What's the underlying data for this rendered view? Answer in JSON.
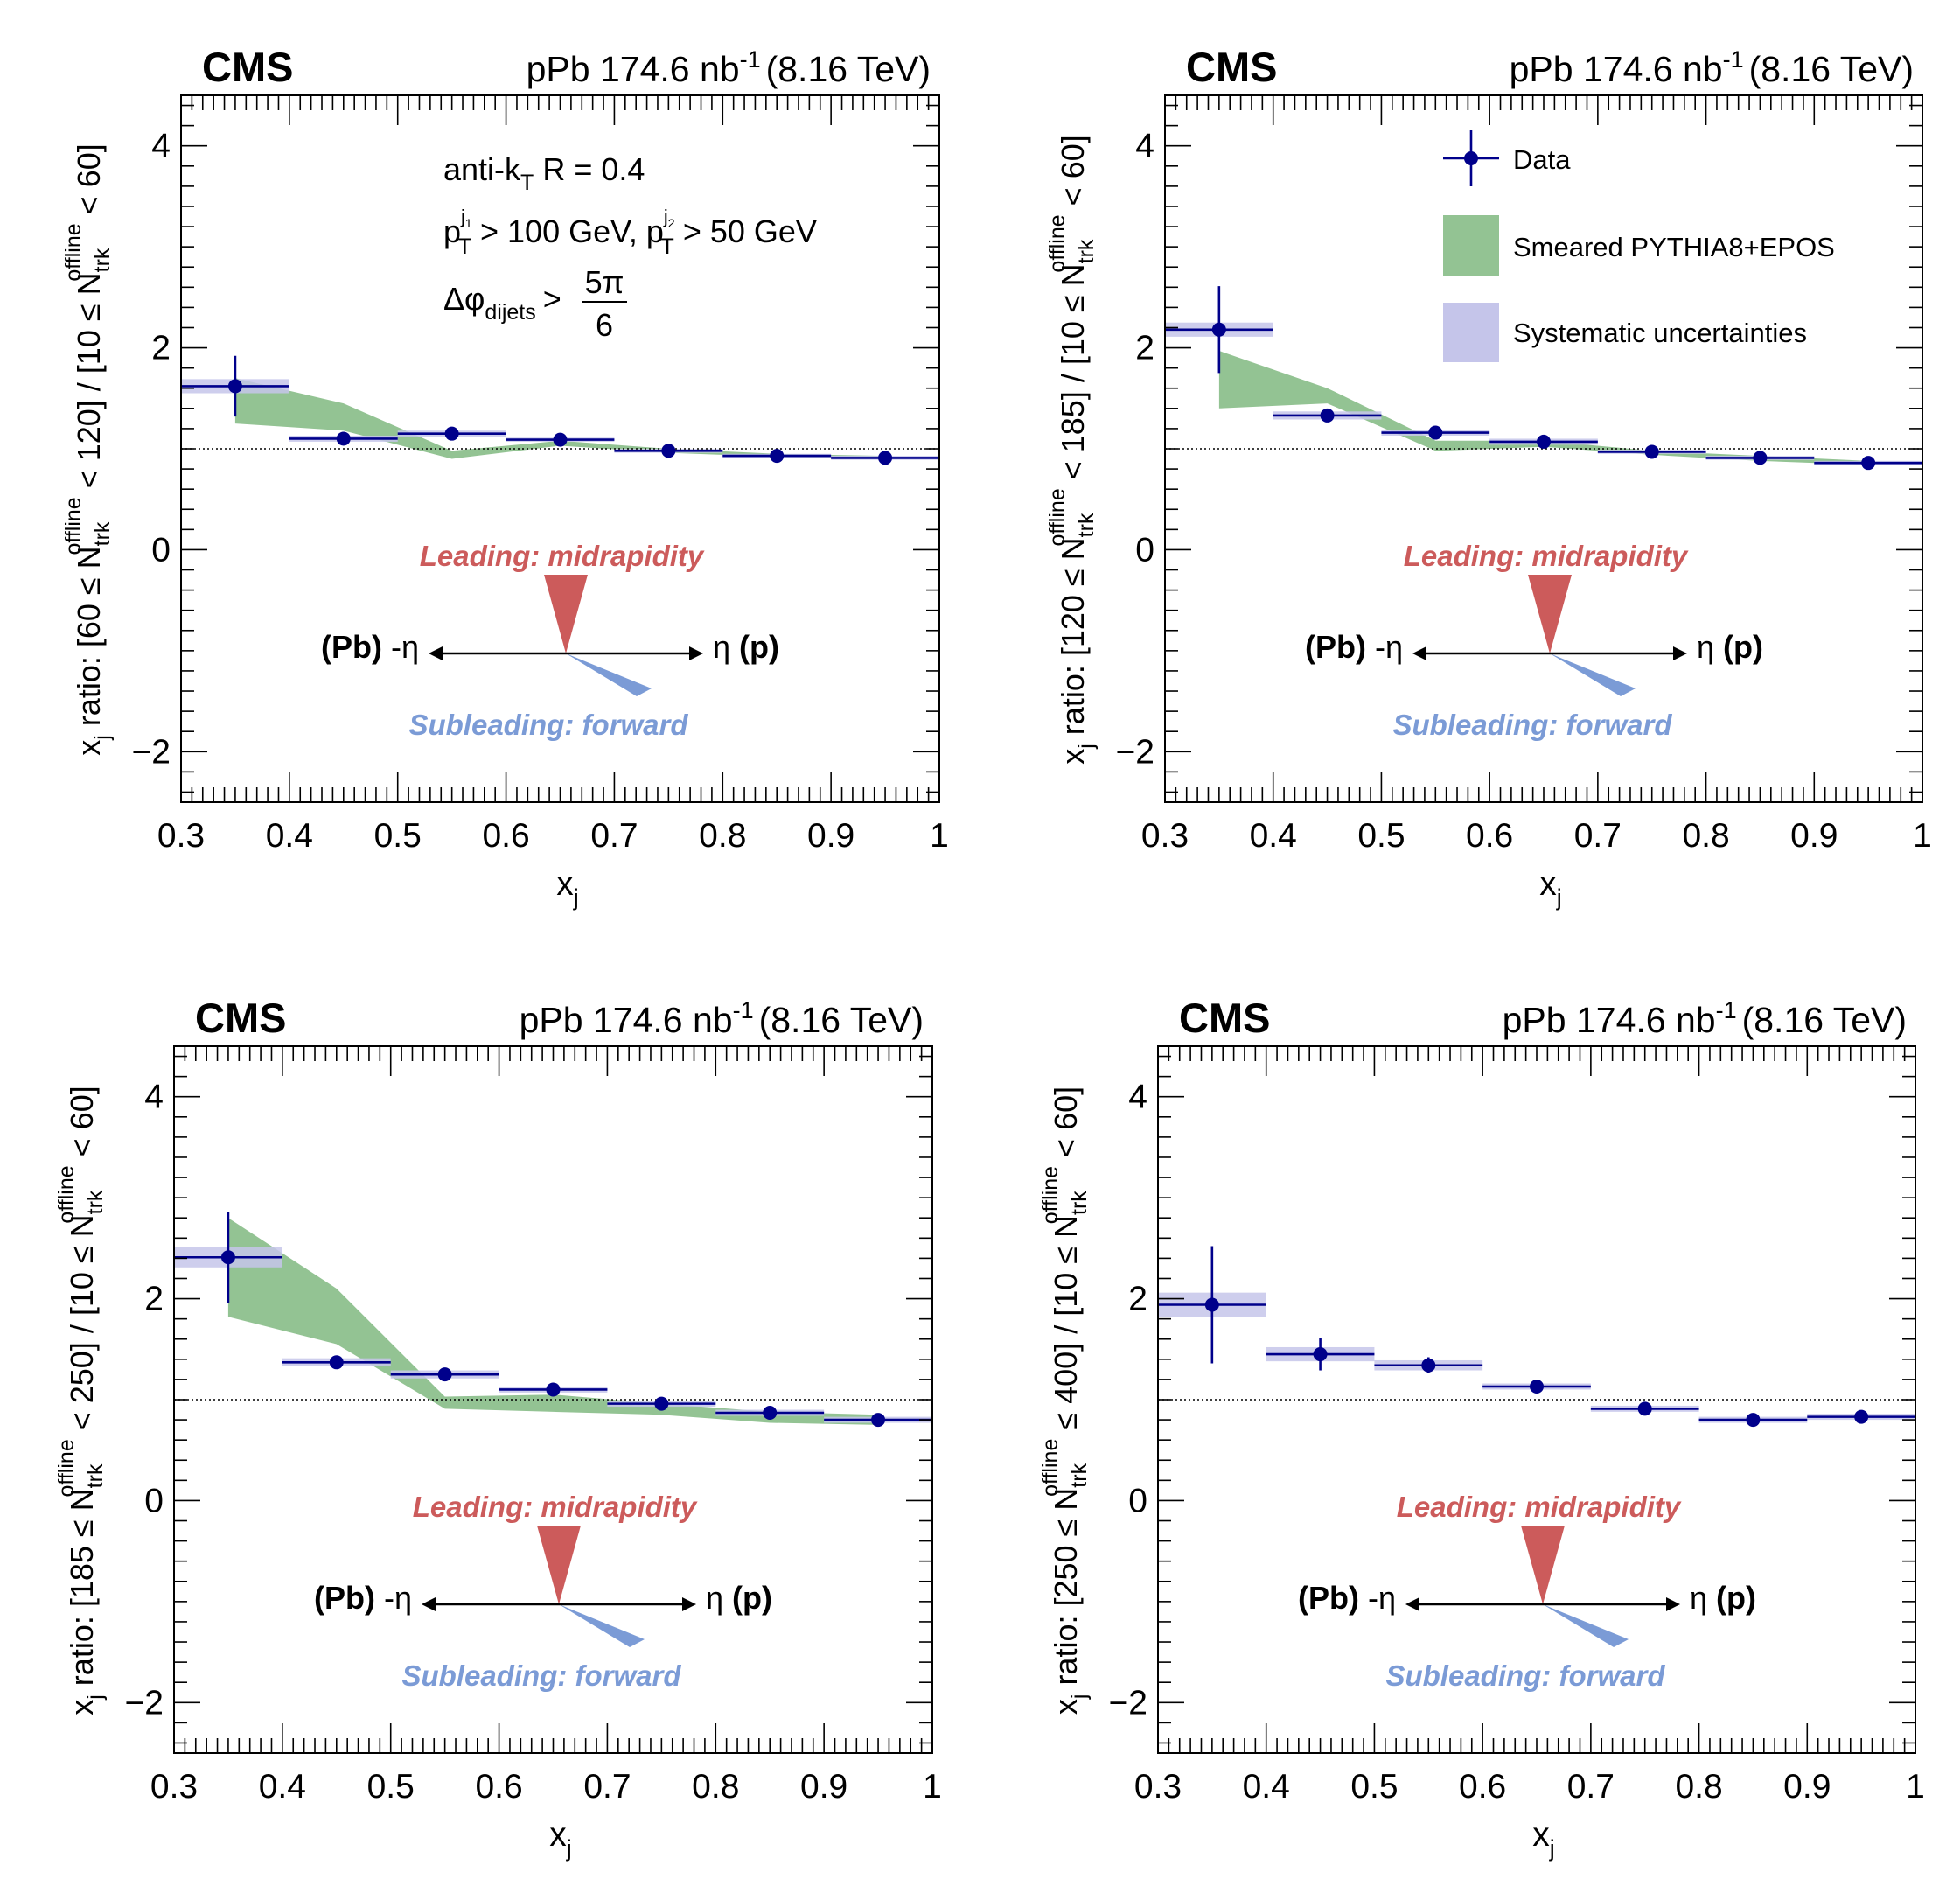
{
  "colors": {
    "data": "#00008b",
    "model_band": "#93c393",
    "syst_band": "#c5c5ea",
    "leading": "#cc5b5b",
    "subleading": "#7b9bd6",
    "axis": "#000000"
  },
  "common": {
    "experiment": "CMS",
    "lumi_text": "pPb 174.6 nb",
    "lumi_sup": "-1",
    "energy_text": "(8.16 TeV)",
    "xlabel_main": "x",
    "xlabel_sub": "j",
    "x_ticks": [
      "0.3",
      "0.4",
      "0.5",
      "0.6",
      "0.7",
      "0.8",
      "0.9",
      "1"
    ],
    "y_ticks": [
      "−2",
      "0",
      "2",
      "4"
    ],
    "cuts": {
      "algo_main": "anti-k",
      "algo_sub": "T",
      "algo_rest": " R = 0.4",
      "pt_p": "p",
      "pt_T": "T",
      "pt_j1": "j",
      "pt_j1_sub": "1",
      "pt_mid": " > 100 GeV,  p",
      "pt_j2": "j",
      "pt_j2_sub": "2",
      "pt_end": " > 50 GeV",
      "dphi_main": "Δφ",
      "dphi_sub": "dijets",
      "dphi_gt": ">",
      "dphi_num": "5π",
      "dphi_den": "6"
    },
    "legend": {
      "data": "Data",
      "model": "Smeared PYTHIA8+EPOS",
      "syst": "Systematic uncertainties"
    },
    "diagram": {
      "leading": "Leading: midrapidity",
      "subleading": "Subleading: forward",
      "left_bold": "(Pb)",
      "left_eta": " -η",
      "right_eta": "η ",
      "right_bold": "(p)"
    }
  },
  "chart_data": [
    {
      "type": "scatter",
      "xlabel": "x_j",
      "ylabel": "x_j ratio: [60 ≤ N_trk^offline < 120] / [10 ≤ N_trk^offline < 60]",
      "ylabel_parts": {
        "prefix": "x",
        "prefix_sub": "j",
        "mid": " ratio: [60 ≤ N",
        "N_sub": "trk",
        "N_sup": "offline",
        "end": " < 120] / [10 ≤ N",
        "N2_sub": "trk",
        "N2_sup": "offline",
        "end2": " < 60]"
      },
      "xlim": [
        0.3,
        1.0
      ],
      "ylim": [
        -2.5,
        4.5
      ],
      "reference_line": 1,
      "show_cuts": true,
      "show_legend": false,
      "data": {
        "x": [
          0.35,
          0.45,
          0.55,
          0.65,
          0.75,
          0.85,
          0.95
        ],
        "y": [
          1.62,
          1.1,
          1.15,
          1.09,
          0.98,
          0.93,
          0.91
        ],
        "xerr": [
          0.05,
          0.05,
          0.05,
          0.05,
          0.05,
          0.05,
          0.05
        ],
        "stat_err": [
          0.3,
          0.04,
          0.03,
          0.03,
          0.02,
          0.02,
          0.02
        ],
        "syst_err": [
          0.07,
          0.03,
          0.03,
          0.02,
          0.02,
          0.02,
          0.02
        ]
      },
      "model": {
        "x": [
          0.35,
          0.45,
          0.55,
          0.65,
          0.75,
          0.85,
          0.95
        ],
        "low": [
          1.25,
          1.18,
          0.9,
          1.03,
          0.96,
          0.92,
          0.9
        ],
        "high": [
          1.7,
          1.45,
          0.98,
          1.08,
          1.0,
          0.95,
          0.93
        ]
      }
    },
    {
      "type": "scatter",
      "xlabel": "x_j",
      "ylabel": "x_j ratio: [120 ≤ N_trk^offline < 185] / [10 ≤ N_trk^offline < 60]",
      "ylabel_parts": {
        "prefix": "x",
        "prefix_sub": "j",
        "mid": " ratio: [120 ≤ N",
        "N_sub": "trk",
        "N_sup": "offline",
        "end": " < 185] / [10 ≤ N",
        "N2_sub": "trk",
        "N2_sup": "offline",
        "end2": " < 60]"
      },
      "xlim": [
        0.3,
        1.0
      ],
      "ylim": [
        -2.5,
        4.5
      ],
      "reference_line": 1,
      "show_cuts": false,
      "show_legend": true,
      "data": {
        "x": [
          0.35,
          0.45,
          0.55,
          0.65,
          0.75,
          0.85,
          0.95
        ],
        "y": [
          2.18,
          1.33,
          1.16,
          1.07,
          0.97,
          0.91,
          0.86
        ],
        "xerr": [
          0.05,
          0.05,
          0.05,
          0.05,
          0.05,
          0.05,
          0.05
        ],
        "stat_err": [
          0.43,
          0.06,
          0.04,
          0.03,
          0.03,
          0.02,
          0.02
        ],
        "syst_err": [
          0.07,
          0.04,
          0.03,
          0.03,
          0.02,
          0.02,
          0.02
        ]
      },
      "model": {
        "x": [
          0.35,
          0.45,
          0.55,
          0.65,
          0.75,
          0.85,
          0.95
        ],
        "low": [
          1.4,
          1.45,
          0.98,
          1.02,
          0.94,
          0.88,
          0.84
        ],
        "high": [
          1.97,
          1.6,
          1.08,
          1.08,
          0.98,
          0.93,
          0.88
        ]
      }
    },
    {
      "type": "scatter",
      "xlabel": "x_j",
      "ylabel": "x_j ratio: [185 ≤ N_trk^offline < 250] / [10 ≤ N_trk^offline < 60]",
      "ylabel_parts": {
        "prefix": "x",
        "prefix_sub": "j",
        "mid": " ratio: [185 ≤ N",
        "N_sub": "trk",
        "N_sup": "offline",
        "end": " < 250] / [10 ≤ N",
        "N2_sub": "trk",
        "N2_sup": "offline",
        "end2": " < 60]"
      },
      "xlim": [
        0.3,
        1.0
      ],
      "ylim": [
        -2.5,
        4.5
      ],
      "reference_line": 1,
      "show_cuts": false,
      "show_legend": false,
      "data": {
        "x": [
          0.35,
          0.45,
          0.55,
          0.65,
          0.75,
          0.85,
          0.95
        ],
        "y": [
          2.41,
          1.37,
          1.25,
          1.1,
          0.96,
          0.87,
          0.8
        ],
        "xerr": [
          0.05,
          0.05,
          0.05,
          0.05,
          0.05,
          0.05,
          0.05
        ],
        "stat_err": [
          0.45,
          0.04,
          0.04,
          0.03,
          0.03,
          0.03,
          0.02
        ],
        "syst_err": [
          0.1,
          0.04,
          0.04,
          0.03,
          0.03,
          0.03,
          0.03
        ]
      },
      "model": {
        "x": [
          0.35,
          0.45,
          0.55,
          0.65,
          0.75,
          0.85,
          0.95
        ],
        "low": [
          1.82,
          1.55,
          0.91,
          0.88,
          0.85,
          0.77,
          0.75
        ],
        "high": [
          2.8,
          2.1,
          1.03,
          1.05,
          0.96,
          0.88,
          0.85
        ]
      }
    },
    {
      "type": "scatter",
      "xlabel": "x_j",
      "ylabel": "x_j ratio: [250 ≤ N_trk^offline ≤ 400] / [10 ≤ N_trk^offline < 60]",
      "ylabel_parts": {
        "prefix": "x",
        "prefix_sub": "j",
        "mid": " ratio: [250 ≤ N",
        "N_sub": "trk",
        "N_sup": "offline",
        "end": " ≤ 400] / [10 ≤ N",
        "N2_sub": "trk",
        "N2_sup": "offline",
        "end2": " < 60]"
      },
      "xlim": [
        0.3,
        1.0
      ],
      "ylim": [
        -2.5,
        4.5
      ],
      "reference_line": 1,
      "show_cuts": false,
      "show_legend": false,
      "data": {
        "x": [
          0.35,
          0.45,
          0.55,
          0.65,
          0.75,
          0.85,
          0.95
        ],
        "y": [
          1.94,
          1.45,
          1.34,
          1.13,
          0.91,
          0.8,
          0.83
        ],
        "xerr": [
          0.05,
          0.05,
          0.05,
          0.05,
          0.05,
          0.05,
          0.05
        ],
        "stat_err": [
          0.58,
          0.16,
          0.08,
          0.04,
          0.03,
          0.03,
          0.03
        ],
        "syst_err": [
          0.12,
          0.07,
          0.05,
          0.03,
          0.03,
          0.03,
          0.03
        ]
      },
      "model": null
    }
  ]
}
